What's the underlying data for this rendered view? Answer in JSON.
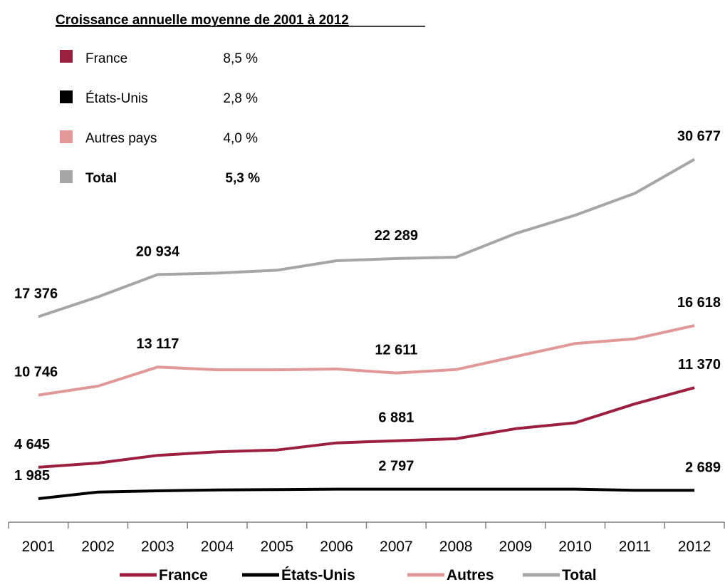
{
  "summary": {
    "title": "Croissance annuelle moyenne de 2001 à 2012",
    "rows": [
      {
        "label": "France",
        "value": "8,5 %",
        "color": "#9b2040",
        "bold": false
      },
      {
        "label": "États-Unis",
        "value": "2,8 %",
        "color": "#000000",
        "bold": false
      },
      {
        "label": "Autres pays",
        "value": "4,0 %",
        "color": "#e09898",
        "bold": false
      },
      {
        "label": "Total",
        "value": "5,3 %",
        "color": "#a6a6a6",
        "bold": true
      }
    ]
  },
  "chart_data": {
    "type": "line",
    "categories": [
      "2001",
      "2002",
      "2003",
      "2004",
      "2005",
      "2006",
      "2007",
      "2008",
      "2009",
      "2010",
      "2011",
      "2012"
    ],
    "series": [
      {
        "name": "France",
        "color": "#9b2040",
        "values": [
          4645,
          5000,
          5650,
          5950,
          6100,
          6700,
          6881,
          7050,
          7900,
          8400,
          10000,
          11370
        ]
      },
      {
        "name": "États-Unis",
        "color": "#000000",
        "values": [
          1985,
          2550,
          2650,
          2720,
          2760,
          2797,
          2797,
          2797,
          2797,
          2797,
          2689,
          2689
        ]
      },
      {
        "name": "Autres",
        "color": "#e09898",
        "values": [
          10746,
          11500,
          13117,
          12880,
          12880,
          12950,
          12611,
          12900,
          14000,
          15100,
          15500,
          16618
        ]
      },
      {
        "name": "Total",
        "color": "#a6a6a6",
        "values": [
          17376,
          19050,
          20934,
          21050,
          21300,
          22100,
          22289,
          22400,
          24400,
          25950,
          27800,
          30677
        ]
      }
    ],
    "data_labels": [
      {
        "series": 0,
        "index": 0,
        "text": "4 645",
        "align": "start"
      },
      {
        "series": 0,
        "index": 6,
        "text": "6 881",
        "align": "middle"
      },
      {
        "series": 0,
        "index": 11,
        "text": "11 370",
        "align": "end"
      },
      {
        "series": 1,
        "index": 0,
        "text": "1 985",
        "align": "start"
      },
      {
        "series": 1,
        "index": 6,
        "text": "2 797",
        "align": "middle"
      },
      {
        "series": 1,
        "index": 11,
        "text": "2 689",
        "align": "end"
      },
      {
        "series": 2,
        "index": 0,
        "text": "10 746",
        "align": "start"
      },
      {
        "series": 2,
        "index": 2,
        "text": "13 117",
        "align": "middle"
      },
      {
        "series": 2,
        "index": 6,
        "text": "12 611",
        "align": "middle"
      },
      {
        "series": 2,
        "index": 11,
        "text": "16 618",
        "align": "end"
      },
      {
        "series": 3,
        "index": 0,
        "text": "17 376",
        "align": "start"
      },
      {
        "series": 3,
        "index": 2,
        "text": "20 934",
        "align": "middle"
      },
      {
        "series": 3,
        "index": 6,
        "text": "22 289",
        "align": "middle"
      },
      {
        "series": 3,
        "index": 11,
        "text": "30 677",
        "align": "end"
      }
    ],
    "ylim": [
      0,
      33000
    ],
    "grid": false,
    "legend_placement": "bottom",
    "xlabel": "",
    "ylabel": ""
  }
}
